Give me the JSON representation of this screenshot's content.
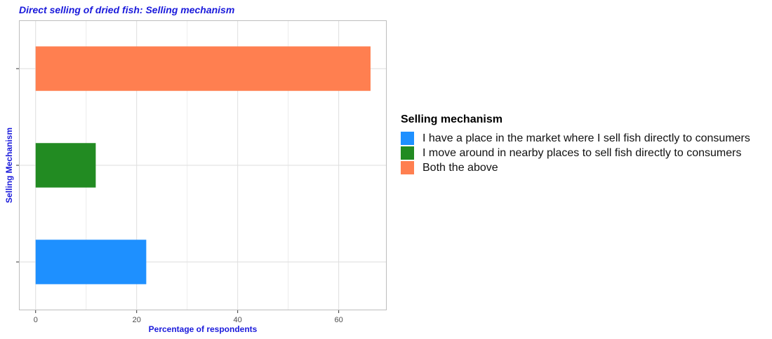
{
  "chart_data": {
    "type": "bar",
    "orientation": "horizontal",
    "title": "Direct selling of dried fish: Selling mechanism",
    "xlabel": "Percentage of respondents",
    "ylabel": "Selling Mechanism",
    "xlim": [
      -3.3,
      69.5
    ],
    "xticks": [
      0,
      20,
      40,
      60
    ],
    "grid": true,
    "legend_title": "Selling mechanism",
    "legend_position": "right",
    "categories": [
      "I have a place in the market where I sell fish directly to consumers",
      "I move around in nearby places to sell fish directly to consumers",
      "Both the above"
    ],
    "values": [
      21.9,
      11.9,
      66.3
    ],
    "colors": [
      "#1e90ff",
      "#228b22",
      "#ff7f50"
    ]
  }
}
